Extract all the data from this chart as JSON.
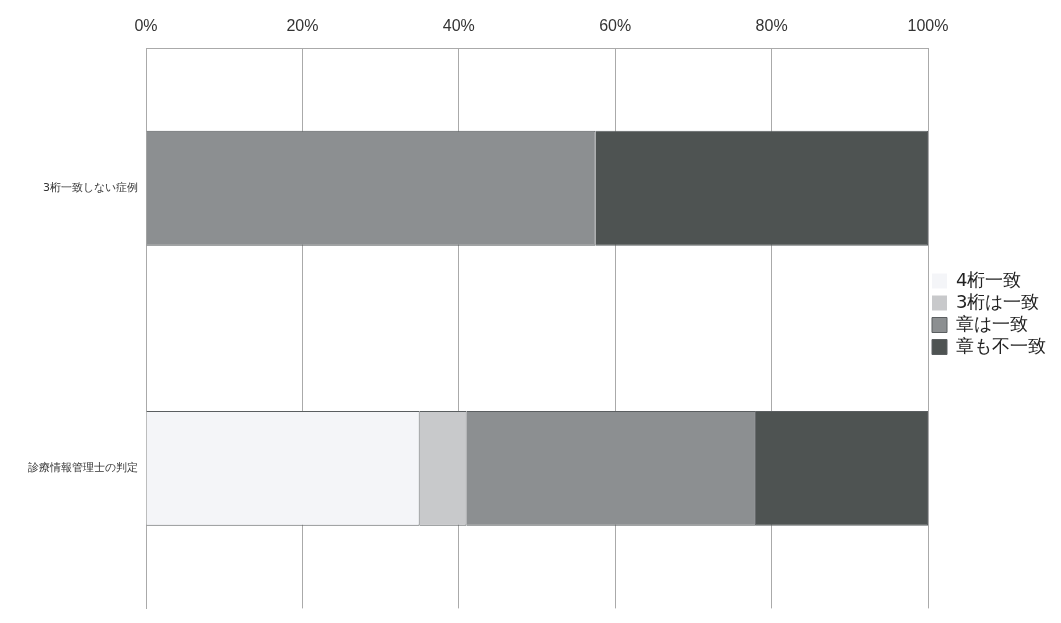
{
  "chart_data": {
    "type": "bar",
    "orientation": "horizontal",
    "stacked": true,
    "categories": [
      "3桁一致しない症例",
      "診療情報管理士の判定"
    ],
    "series": [
      {
        "name": "4桁一致",
        "color": "#f4f5f8",
        "values": [
          0,
          35
        ]
      },
      {
        "name": "3桁は一致",
        "color": "#c8c9cb",
        "values": [
          0,
          6
        ]
      },
      {
        "name": "章は一致",
        "color": "#8c8f91",
        "values": [
          57.5,
          37
        ]
      },
      {
        "name": "章も不一致",
        "color": "#4e5352",
        "values": [
          42.5,
          22
        ]
      }
    ],
    "xlim": [
      0,
      100
    ],
    "xticks": [
      {
        "value": 0,
        "label": "0%"
      },
      {
        "value": 20,
        "label": "20%"
      },
      {
        "value": 40,
        "label": "40%"
      },
      {
        "value": 60,
        "label": "60%"
      },
      {
        "value": 80,
        "label": "80%"
      },
      {
        "value": 100,
        "label": "100%"
      }
    ],
    "grid": "x",
    "legend": "right"
  }
}
